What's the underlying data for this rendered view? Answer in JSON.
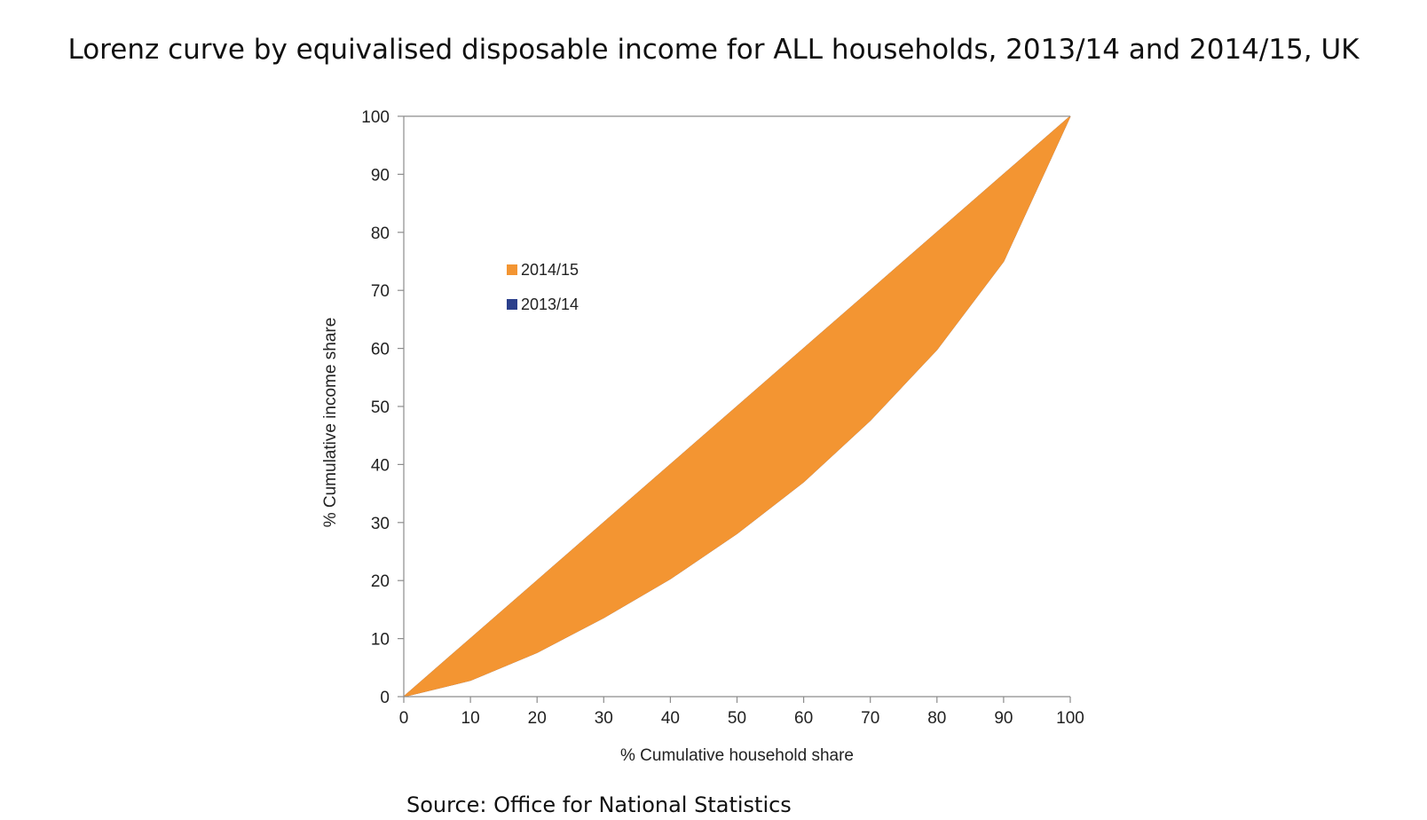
{
  "page": {
    "title": "Lorenz curve by equivalised disposable income for ALL households, 2013/14 and 2014/15, UK",
    "source": "Source: Office for National Statistics"
  },
  "chart_data": {
    "type": "area",
    "title": "Lorenz curve by equivalised disposable income for ALL households, 2013/14 and 2014/15, UK",
    "xlabel": "% Cumulative household share",
    "ylabel": "% Cumulative income share",
    "xlim": [
      0,
      100
    ],
    "ylim": [
      0,
      100
    ],
    "x_ticks": [
      "0",
      "10",
      "20",
      "30",
      "40",
      "50",
      "60",
      "70",
      "80",
      "90",
      "100"
    ],
    "y_ticks": [
      "0",
      "10",
      "20",
      "30",
      "40",
      "50",
      "60",
      "70",
      "80",
      "90",
      "100"
    ],
    "grid": false,
    "legend_position": "upper-left",
    "x": [
      0,
      10,
      20,
      30,
      40,
      50,
      60,
      70,
      80,
      90,
      100
    ],
    "equality_line": [
      0,
      10,
      20,
      30,
      40,
      50,
      60,
      70,
      80,
      90,
      100
    ],
    "series": [
      {
        "name": "2014/15",
        "color": "#f39532",
        "values": [
          0,
          2.8,
          7.6,
          13.6,
          20.3,
          28.1,
          37.0,
          47.6,
          59.8,
          75.0,
          100
        ]
      },
      {
        "name": "2013/14",
        "color": "#2b3f8c",
        "values": [
          0,
          2.8,
          7.6,
          13.6,
          20.3,
          28.1,
          37.0,
          47.6,
          59.8,
          75.0,
          100
        ]
      }
    ]
  }
}
